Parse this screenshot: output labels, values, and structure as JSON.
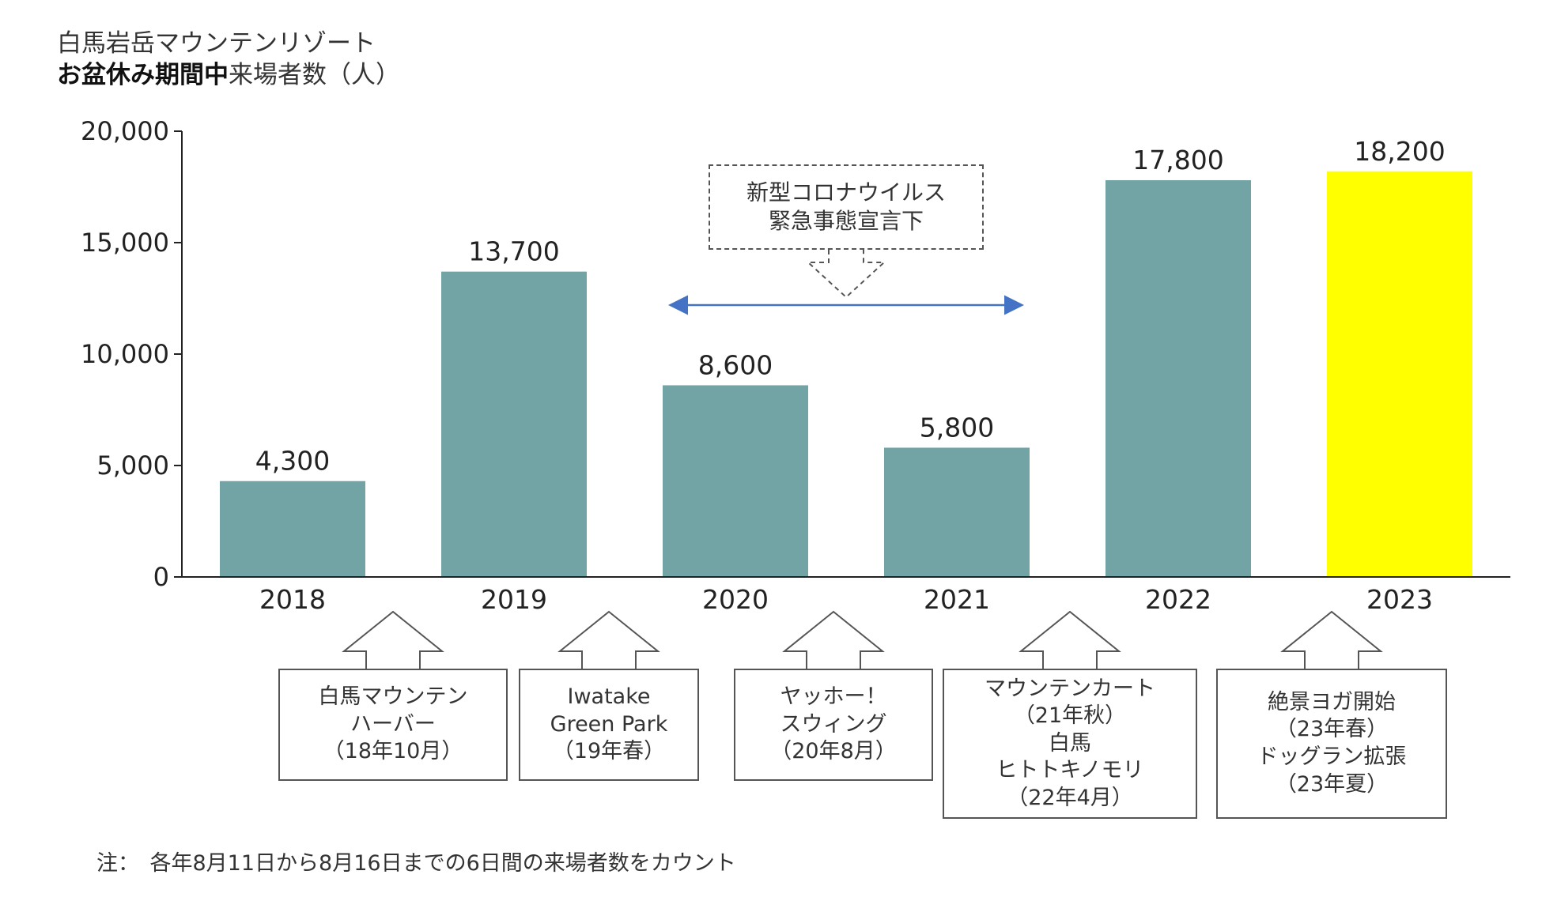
{
  "title": {
    "line1": "白馬岩岳マウンテンリゾート",
    "line2_bold": "お盆休み期間中",
    "line2_rest": "来場者数（人）"
  },
  "colors": {
    "bar": "#72a3a5",
    "highlight": "#ffff00",
    "arrow": "#4472c4",
    "axis": "#222222"
  },
  "chart_data": {
    "type": "bar",
    "categories": [
      "2018",
      "2019",
      "2020",
      "2021",
      "2022",
      "2023"
    ],
    "values": [
      4300,
      13700,
      8600,
      5800,
      17800,
      18200
    ],
    "value_labels": [
      "4,300",
      "13,700",
      "8,600",
      "5,800",
      "17,800",
      "18,200"
    ],
    "highlight_category": "2023",
    "ylim": [
      0,
      20000
    ],
    "yticks": [
      0,
      5000,
      10000,
      15000,
      20000
    ],
    "ytick_labels": [
      "0",
      "5,000",
      "10,000",
      "15,000",
      "20,000"
    ],
    "grid": false,
    "legend": "none"
  },
  "covid_note": {
    "lines": [
      "新型コロナウイルス",
      "緊急事態宣言下"
    ],
    "span": [
      "2020",
      "2021"
    ]
  },
  "annotations": [
    {
      "category": "2018",
      "lines": [
        "白馬マウンテン",
        "ハーバー",
        "（18年10月）"
      ]
    },
    {
      "category": "2019",
      "lines": [
        "Iwatake",
        "Green Park",
        "（19年春）"
      ]
    },
    {
      "category": "2020",
      "lines": [
        "ヤッホー！",
        "スウィング",
        "（20年8月）"
      ]
    },
    {
      "category": "2021",
      "lines": [
        "マウンテンカート",
        "（21年秋）",
        "白馬",
        "ヒトトキノモリ",
        "（22年4月）"
      ]
    },
    {
      "category": "2022",
      "lines": [
        "絶景ヨガ開始",
        "（23年春）",
        "ドッグラン拡張",
        "（23年夏）"
      ]
    }
  ],
  "footnote": "注：　各年8月11日から8月16日までの6日間の来場者数をカウント"
}
